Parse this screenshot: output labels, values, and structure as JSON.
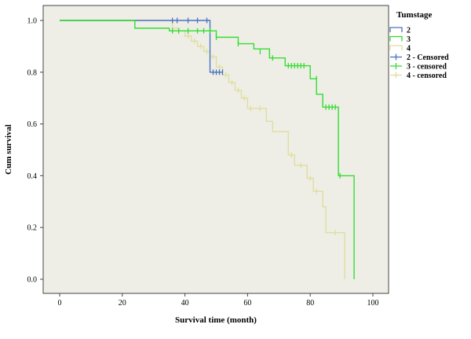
{
  "chart_data": {
    "type": "line",
    "subtype": "kaplan-meier step",
    "xlabel": "Survival time (month)",
    "ylabel": "Cum survival",
    "xlim": [
      0,
      100
    ],
    "ylim": [
      0.0,
      1.0
    ],
    "x_ticks": [
      "0",
      "20",
      "40",
      "60",
      "80",
      "100"
    ],
    "y_ticks": [
      "0.0",
      "0.2",
      "0.4",
      "0.6",
      "0.8",
      "1.0"
    ],
    "grid": false,
    "plot_background": "#eeeee6",
    "legend": {
      "title": "Tumstage",
      "placement": "right",
      "entries": [
        {
          "label": "2",
          "series": 0,
          "kind": "line"
        },
        {
          "label": "3",
          "series": 1,
          "kind": "line"
        },
        {
          "label": "4",
          "series": 2,
          "kind": "line"
        },
        {
          "label": "2 - Censored",
          "series": 0,
          "kind": "censor"
        },
        {
          "label": "3 - censored",
          "series": 1,
          "kind": "censor"
        },
        {
          "label": "4 - censored",
          "series": 2,
          "kind": "censor"
        }
      ]
    },
    "series": [
      {
        "color": "#4a73c0",
        "steps": [
          [
            0,
            1.0
          ],
          [
            48,
            0.8
          ],
          [
            52,
            0.8
          ]
        ],
        "censored": [
          [
            36,
            1.0
          ],
          [
            37.5,
            1.0
          ],
          [
            41,
            1.0
          ],
          [
            44,
            1.0
          ],
          [
            47,
            1.0
          ],
          [
            49,
            0.8
          ],
          [
            50,
            0.8
          ],
          [
            51,
            0.8
          ],
          [
            52,
            0.8
          ]
        ]
      },
      {
        "color": "#33dd33",
        "steps": [
          [
            0,
            1.0
          ],
          [
            24,
            0.97
          ],
          [
            35,
            0.96
          ],
          [
            50,
            0.935
          ],
          [
            57,
            0.91
          ],
          [
            62,
            0.89
          ],
          [
            67,
            0.855
          ],
          [
            72,
            0.825
          ],
          [
            80,
            0.775
          ],
          [
            82,
            0.715
          ],
          [
            84,
            0.665
          ],
          [
            89,
            0.4
          ],
          [
            94,
            0.0
          ]
        ],
        "censored": [
          [
            36,
            0.96
          ],
          [
            38,
            0.96
          ],
          [
            41,
            0.96
          ],
          [
            44,
            0.96
          ],
          [
            46,
            0.96
          ],
          [
            48,
            0.96
          ],
          [
            50,
            0.935
          ],
          [
            57,
            0.91
          ],
          [
            64,
            0.88
          ],
          [
            68,
            0.855
          ],
          [
            73,
            0.825
          ],
          [
            74,
            0.825
          ],
          [
            75,
            0.825
          ],
          [
            76,
            0.825
          ],
          [
            77,
            0.825
          ],
          [
            78,
            0.825
          ],
          [
            82,
            0.775
          ],
          [
            85,
            0.665
          ],
          [
            86,
            0.665
          ],
          [
            87,
            0.665
          ],
          [
            88,
            0.665
          ],
          [
            89.5,
            0.4
          ]
        ]
      },
      {
        "color": "#e0dda0",
        "steps": [
          [
            0,
            1.0
          ],
          [
            36,
            0.97
          ],
          [
            38,
            0.96
          ],
          [
            40,
            0.94
          ],
          [
            42,
            0.92
          ],
          [
            44,
            0.9
          ],
          [
            46,
            0.88
          ],
          [
            48,
            0.86
          ],
          [
            50,
            0.82
          ],
          [
            52,
            0.79
          ],
          [
            54,
            0.76
          ],
          [
            56,
            0.73
          ],
          [
            58,
            0.7
          ],
          [
            60,
            0.66
          ],
          [
            66,
            0.61
          ],
          [
            68,
            0.57
          ],
          [
            73,
            0.48
          ],
          [
            75,
            0.44
          ],
          [
            79,
            0.39
          ],
          [
            81,
            0.34
          ],
          [
            84,
            0.28
          ],
          [
            85,
            0.18
          ],
          [
            91,
            0.0
          ]
        ],
        "censored": [
          [
            38,
            0.96
          ],
          [
            41,
            0.94
          ],
          [
            43,
            0.92
          ],
          [
            45,
            0.9
          ],
          [
            47,
            0.88
          ],
          [
            49,
            0.86
          ],
          [
            51,
            0.82
          ],
          [
            53,
            0.79
          ],
          [
            55,
            0.76
          ],
          [
            57,
            0.73
          ],
          [
            59,
            0.7
          ],
          [
            61,
            0.66
          ],
          [
            64,
            0.66
          ],
          [
            74,
            0.48
          ],
          [
            77,
            0.44
          ],
          [
            80,
            0.39
          ],
          [
            82,
            0.34
          ],
          [
            88,
            0.18
          ]
        ]
      }
    ]
  }
}
